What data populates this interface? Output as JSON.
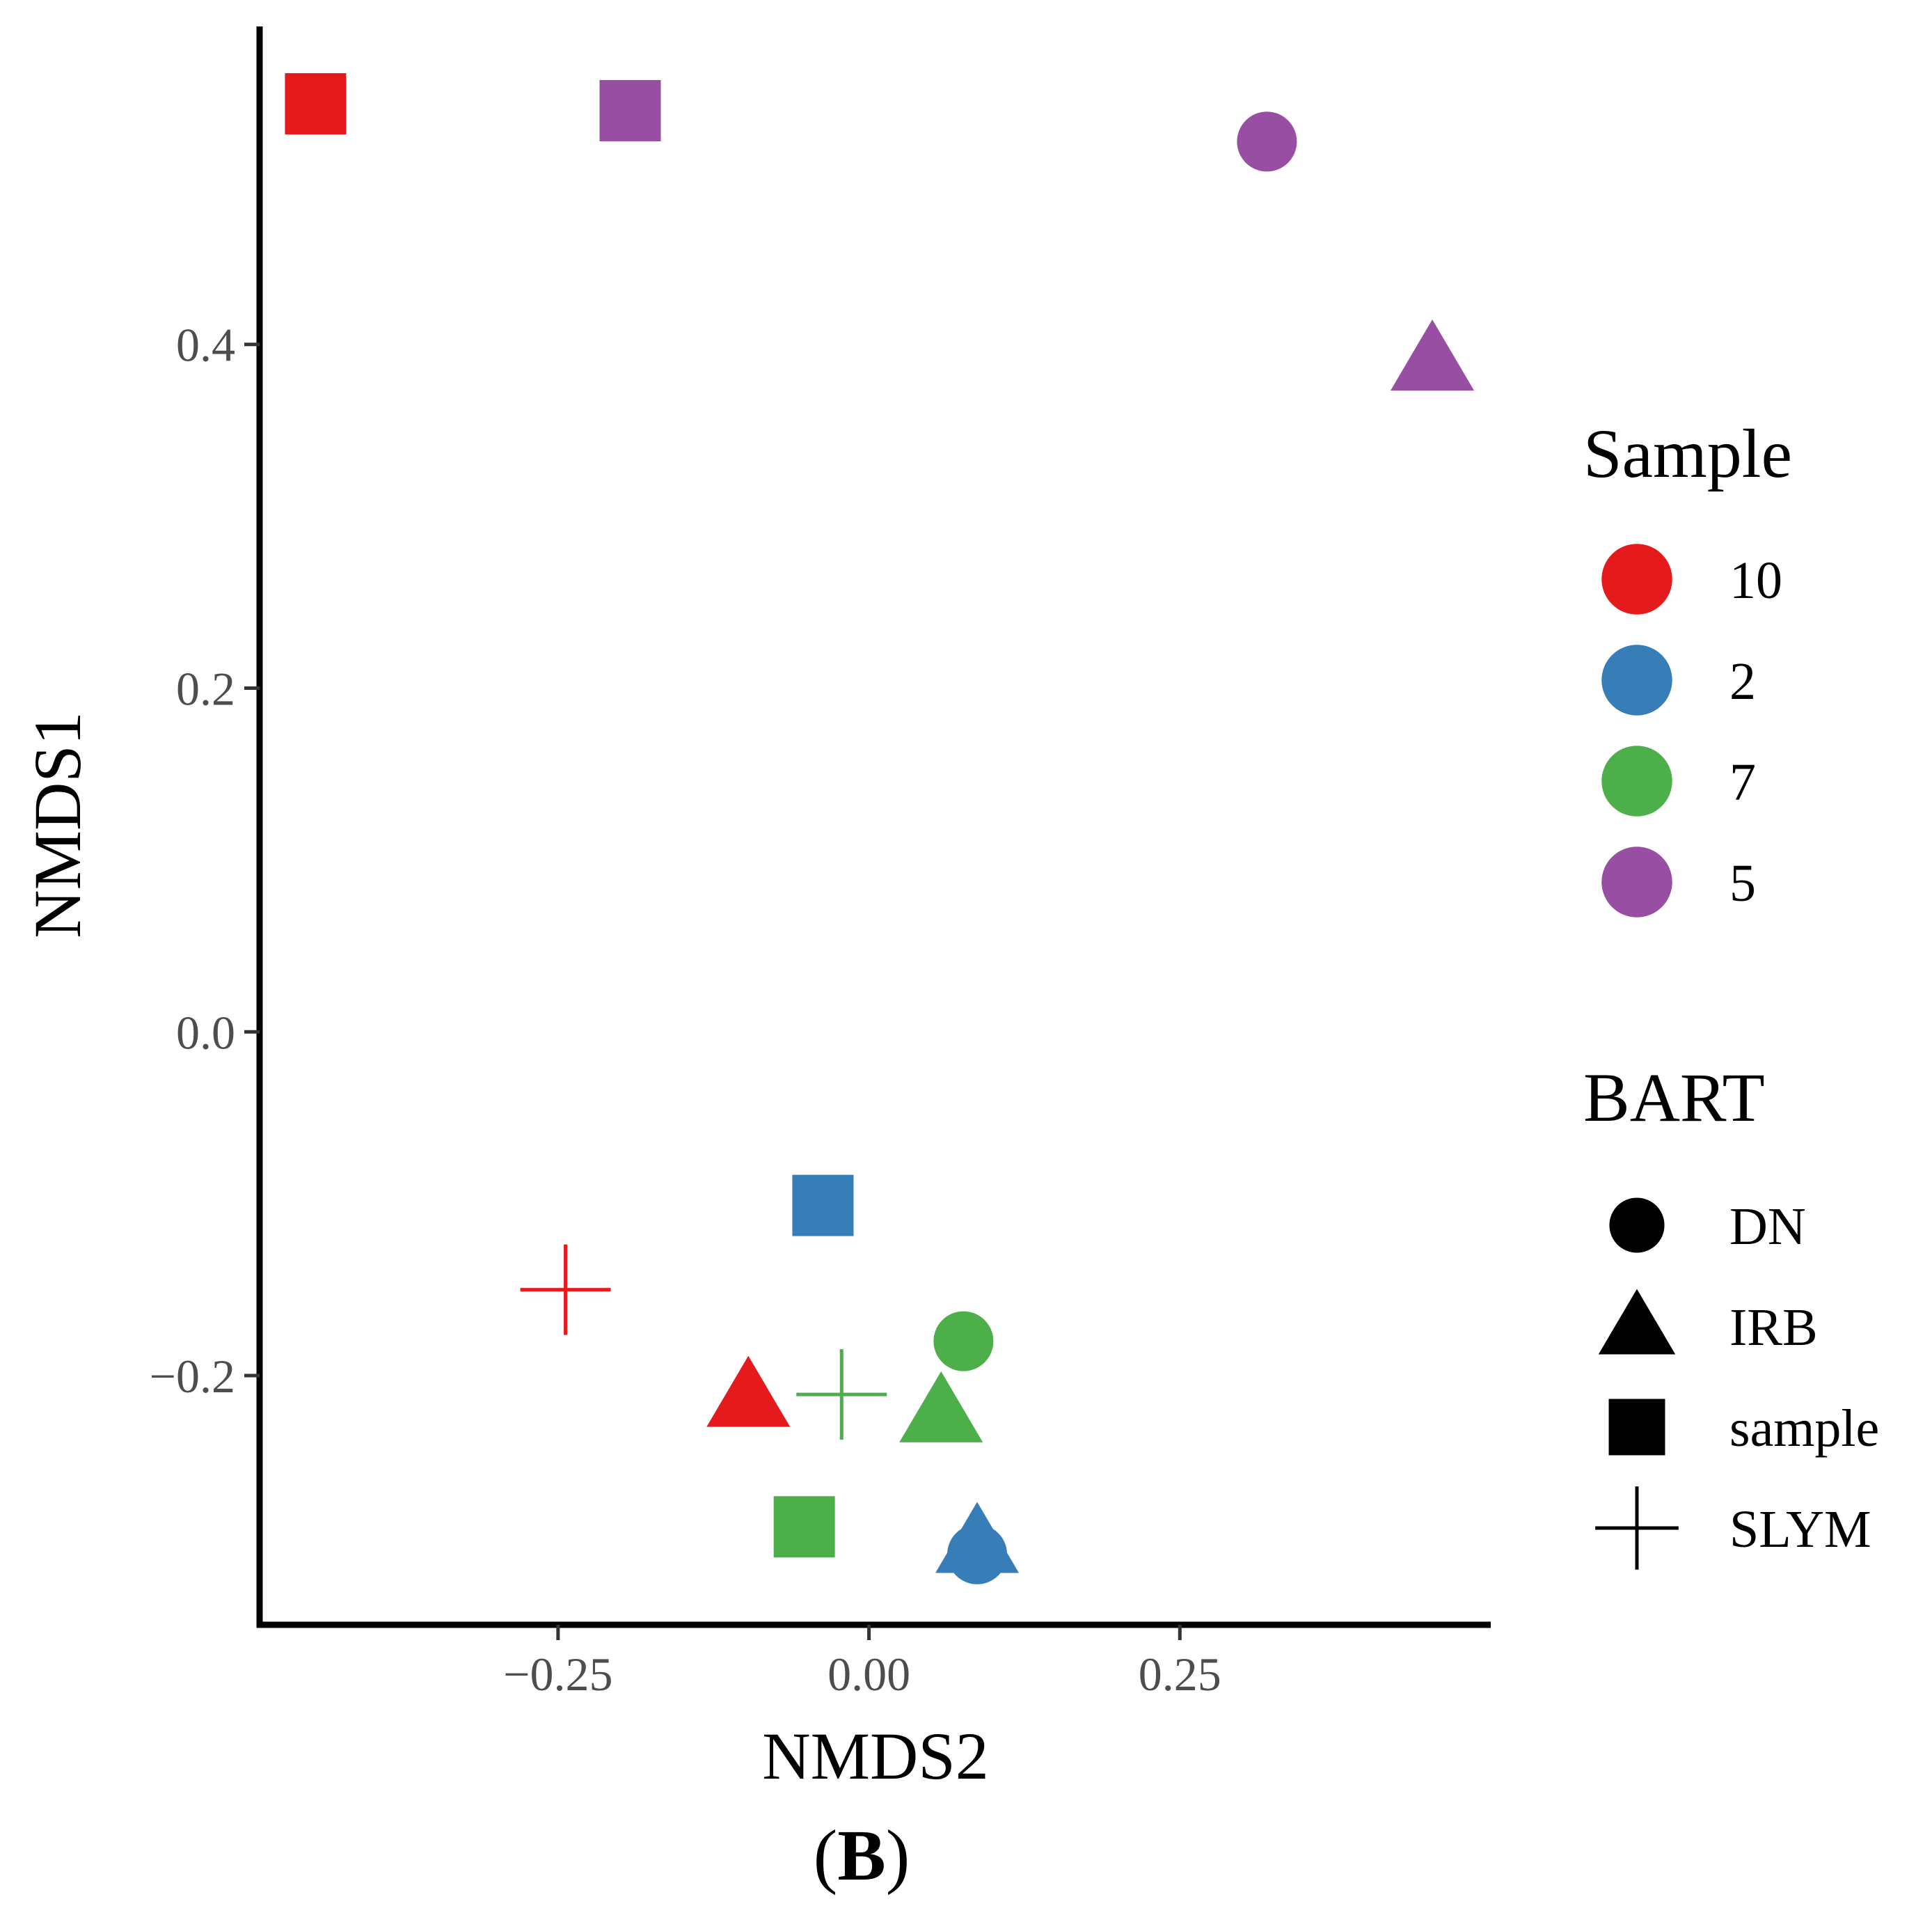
{
  "chart_data": {
    "type": "scatter",
    "title": "",
    "xlabel": "NMDS2",
    "ylabel": "NMDS1",
    "xlim": [
      -0.49,
      0.5
    ],
    "ylim": [
      -0.345,
      0.585
    ],
    "xticks": [
      -0.25,
      0.0,
      0.25
    ],
    "xtick_labels": [
      "−0.25",
      "0.00",
      "0.25"
    ],
    "yticks": [
      -0.2,
      0.0,
      0.2,
      0.4
    ],
    "ytick_labels": [
      "−0.2",
      "0.0",
      "0.2",
      "0.4"
    ],
    "grid": false,
    "legend_position": "right",
    "color_legend": {
      "title": "Sample",
      "entries": [
        {
          "label": "10",
          "color": "#E41A1C"
        },
        {
          "label": "2",
          "color": "#377EB8"
        },
        {
          "label": "7",
          "color": "#4DAF4A"
        },
        {
          "label": "5",
          "color": "#984EA3"
        }
      ]
    },
    "shape_legend": {
      "title": "BART",
      "entries": [
        {
          "label": "DN",
          "shape": "circle"
        },
        {
          "label": "IRB",
          "shape": "triangle"
        },
        {
          "label": "sample",
          "shape": "square"
        },
        {
          "label": "SLYM",
          "shape": "plus"
        }
      ]
    },
    "points": [
      {
        "sample": "10",
        "bart": "sample",
        "x": -0.445,
        "y": 0.54
      },
      {
        "sample": "5",
        "bart": "sample",
        "x": -0.192,
        "y": 0.536
      },
      {
        "sample": "5",
        "bart": "DN",
        "x": 0.32,
        "y": 0.518
      },
      {
        "sample": "5",
        "bart": "IRB",
        "x": 0.453,
        "y": 0.391
      },
      {
        "sample": "2",
        "bart": "sample",
        "x": -0.037,
        "y": -0.101
      },
      {
        "sample": "10",
        "bart": "SLYM",
        "x": -0.244,
        "y": -0.15
      },
      {
        "sample": "7",
        "bart": "DN",
        "x": 0.076,
        "y": -0.18
      },
      {
        "sample": "10",
        "bart": "IRB",
        "x": -0.097,
        "y": -0.212
      },
      {
        "sample": "7",
        "bart": "SLYM",
        "x": -0.022,
        "y": -0.211
      },
      {
        "sample": "7",
        "bart": "IRB",
        "x": 0.058,
        "y": -0.221
      },
      {
        "sample": "7",
        "bart": "sample",
        "x": -0.052,
        "y": -0.288
      },
      {
        "sample": "2",
        "bart": "DN",
        "x": 0.087,
        "y": -0.304
      },
      {
        "sample": "2",
        "bart": "IRB",
        "x": 0.087,
        "y": -0.297
      }
    ]
  },
  "caption": {
    "open": "(",
    "letter": "B",
    "close": ")"
  }
}
